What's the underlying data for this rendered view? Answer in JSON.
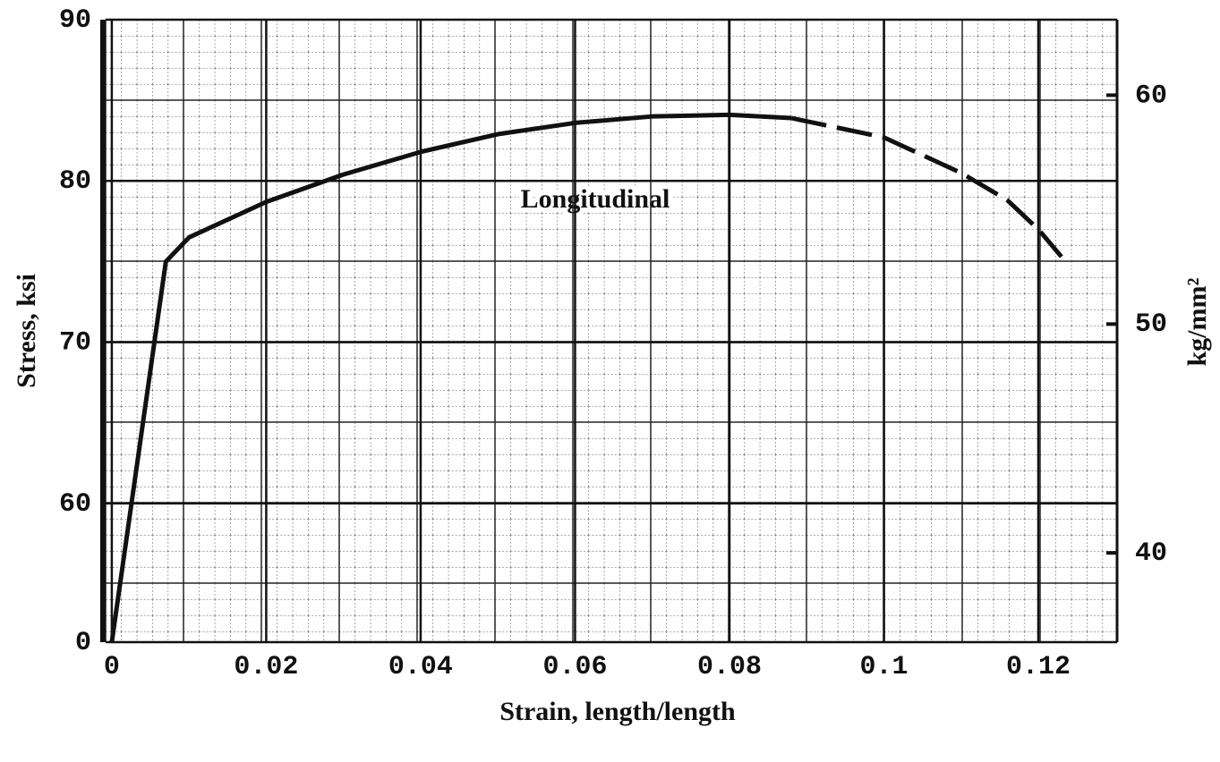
{
  "chart_data": {
    "type": "line",
    "x_label": "Strain, length/length",
    "y_label": "Stress,  ksi",
    "y2_label": "kg/mm²",
    "annotation": "Longitudinal",
    "xlim": [
      -0.0008,
      0.1302
    ],
    "xticks": [
      0,
      0.02,
      0.04,
      0.06,
      0.08,
      0.1,
      0.12
    ],
    "ylim": [
      0,
      90
    ],
    "y_break": 51.4,
    "yticks": [
      0,
      60,
      70,
      80,
      90
    ],
    "y2lim": [
      36.1,
      63.3
    ],
    "y2ticks": [
      40,
      50,
      60
    ],
    "grid": true,
    "series": [
      {
        "color": "#111111",
        "dashed": false,
        "x": [
          0,
          0.007,
          0.01,
          0.02,
          0.03,
          0.04,
          0.05,
          0.06,
          0.07,
          0.08,
          0.088
        ],
        "values": [
          0,
          75,
          76.5,
          78.7,
          80.4,
          81.8,
          82.9,
          83.6,
          84,
          84.1,
          83.9
        ]
      },
      {
        "color": "#111111",
        "dashed": true,
        "x": [
          0.088,
          0.1,
          0.11,
          0.116,
          0.12,
          0.123
        ],
        "values": [
          83.9,
          82.7,
          80.5,
          78.8,
          77,
          75.3
        ]
      }
    ]
  }
}
